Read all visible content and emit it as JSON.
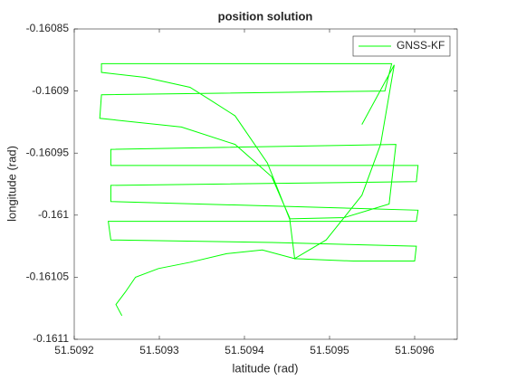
{
  "chart_data": {
    "type": "line",
    "title": "position solution",
    "xlabel": "latitude (rad)",
    "ylabel": "longitude (rad)",
    "xlim": [
      51.5092,
      51.50965
    ],
    "xticks": [
      51.5092,
      51.5093,
      51.5094,
      51.5095,
      51.5096
    ],
    "ylim": [
      -0.1611,
      -0.16085
    ],
    "yticks": [
      -0.1611,
      -0.16105,
      -0.161,
      -0.16095,
      -0.1609,
      -0.16085
    ],
    "legend": "upper right",
    "x": [
      51.509256,
      51.509249,
      51.50926,
      51.509272,
      51.509299,
      51.509336,
      51.509379,
      51.509421,
      51.509459,
      51.509528,
      51.5096,
      51.509602,
      51.509432,
      51.509243,
      51.50924,
      51.509432,
      51.509602,
      51.509604,
      51.509243,
      51.509243,
      51.509602,
      51.509604,
      51.509243,
      51.509243,
      51.509578,
      51.50957,
      51.509517,
      51.509453,
      51.509427,
      51.509389,
      51.509357,
      51.509336,
      51.509283,
      51.509232,
      51.509232,
      51.509573,
      51.509565,
      51.509232,
      51.50923,
      51.509326,
      51.509389,
      51.509432,
      51.509453,
      51.509459,
      51.509496,
      51.509538,
      51.50956,
      51.509576,
      51.509538
    ],
    "series": [
      {
        "name": "GNSS-KF",
        "color": "#00ff00",
        "values": [
          -0.161081,
          -0.161072,
          -0.161062,
          -0.16105,
          -0.161043,
          -0.161038,
          -0.161031,
          -0.161028,
          -0.161035,
          -0.161037,
          -0.161037,
          -0.161025,
          -0.161022,
          -0.16102,
          -0.161005,
          -0.161005,
          -0.161005,
          -0.160996,
          -0.160989,
          -0.160976,
          -0.160973,
          -0.16096,
          -0.16096,
          -0.160947,
          -0.160943,
          -0.160991,
          -0.161002,
          -0.161003,
          -0.160958,
          -0.16092,
          -0.160906,
          -0.160897,
          -0.160889,
          -0.160885,
          -0.160878,
          -0.160878,
          -0.1609,
          -0.160903,
          -0.160922,
          -0.160929,
          -0.160943,
          -0.160969,
          -0.161002,
          -0.161035,
          -0.16102,
          -0.160984,
          -0.160943,
          -0.160879,
          -0.160927
        ]
      }
    ]
  }
}
